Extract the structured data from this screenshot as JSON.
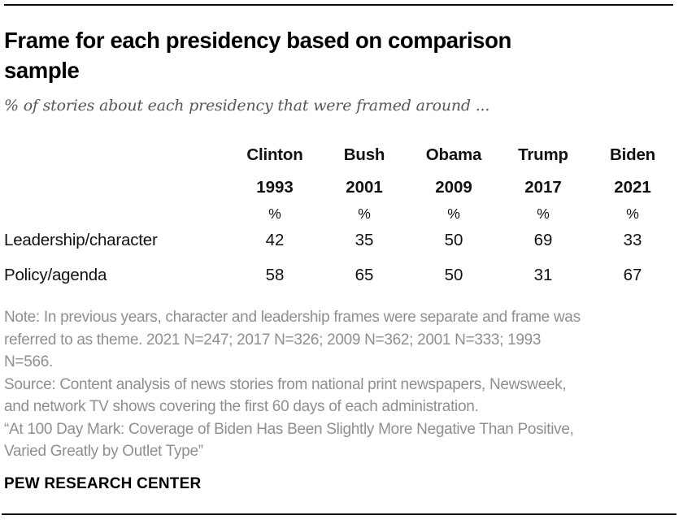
{
  "header": {
    "title": "Frame for each presidency based on comparison sample",
    "subtitle": "% of stories about each presidency that were framed around ..."
  },
  "table": {
    "columns": [
      {
        "president": "Clinton",
        "year": "1993",
        "unit": "%"
      },
      {
        "president": "Bush",
        "year": "2001",
        "unit": "%"
      },
      {
        "president": "Obama",
        "year": "2009",
        "unit": "%"
      },
      {
        "president": "Trump",
        "year": "2017",
        "unit": "%"
      },
      {
        "president": "Biden",
        "year": "2021",
        "unit": "%"
      }
    ],
    "rows": [
      {
        "label": "Leadership/character",
        "values": [
          42,
          35,
          50,
          69,
          33
        ]
      },
      {
        "label": "Policy/agenda",
        "values": [
          58,
          65,
          50,
          31,
          67
        ]
      }
    ]
  },
  "footnotes": {
    "note": "Note: In previous years, character and leadership frames were separate and frame was referred to as theme. 2021 N=247; 2017 N=326; 2009 N=362; 2001 N=333; 1993 N=566.",
    "source": "Source: Content analysis of news stories from national print newspapers, Newsweek, and network TV shows covering the first 60 days of each administration.",
    "report_title": "“At 100 Day Mark: Coverage of Biden Has Been Slightly More Negative Than Positive, Varied Greatly by Outlet Type”"
  },
  "branding": {
    "org": "PEW RESEARCH CENTER"
  },
  "colors": {
    "rule": "#0b0b0b",
    "title_text": "#000000",
    "subtitle_gray": "#56575b",
    "footnote_gray": "#8e8f93"
  },
  "chart_data": {
    "type": "table",
    "title": "Frame for each presidency based on comparison sample",
    "subtitle": "% of stories about each presidency that were framed around ...",
    "categories": [
      "Clinton 1993",
      "Bush 2001",
      "Obama 2009",
      "Trump 2017",
      "Biden 2021"
    ],
    "series": [
      {
        "name": "Leadership/character",
        "values": [
          42,
          35,
          50,
          69,
          33
        ]
      },
      {
        "name": "Policy/agenda",
        "values": [
          58,
          65,
          50,
          31,
          67
        ]
      }
    ],
    "unit": "%",
    "value_range": [
      0,
      100
    ],
    "layout": "rows are frames, columns are presidencies (first 60 days of each administration)"
  }
}
